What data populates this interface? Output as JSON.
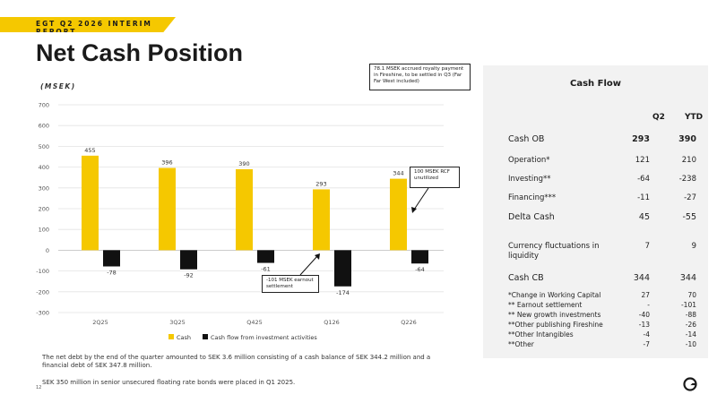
{
  "header": {
    "banner": "EGT Q2 2026 INTERIM REPORT",
    "title": "Net Cash Position",
    "unit": "(MSEK)"
  },
  "chart_data": {
    "type": "bar",
    "categories": [
      "2Q25",
      "3Q25",
      "Q425",
      "Q126",
      "Q226"
    ],
    "series": [
      {
        "name": "Cash",
        "values": [
          455,
          396,
          390,
          293,
          344
        ],
        "color": "#f5c800",
        "labels": [
          "455",
          "396",
          "390",
          "293",
          "344"
        ]
      },
      {
        "name": "Cash flow from investment activities",
        "values": [
          -78,
          -92,
          -61,
          -174,
          -64
        ],
        "color": "#111111",
        "labels": [
          "-78",
          "-92",
          "-61",
          "-174",
          "-64"
        ]
      }
    ],
    "ylim": [
      -300,
      700
    ],
    "yticks": [
      "-300",
      "-200",
      "-100",
      "0",
      "100",
      "200",
      "300",
      "400",
      "500",
      "600",
      "700"
    ],
    "grid": true,
    "legend": "bottom"
  },
  "callouts": {
    "royalty": "78.1 MSEK accrued royalty payment in Fireshine, to be settled in Q3 (Far Far West included)",
    "rcf": "100 MSEK RCF unutilized",
    "earnout": "-101 MSEK earnout settlement"
  },
  "notes": {
    "net_debt": "The net debt by the end of the quarter amounted to SEK 3.6 million consisting of a cash balance of SEK 344.2 million and a financial debt of SEK 347.8 million.",
    "bonds": "SEK 350 million in senior unsecured floating rate bonds were placed in Q1 2025."
  },
  "page_number": "12",
  "cashflow": {
    "title": "Cash Flow",
    "col_q2": "Q2",
    "col_ytd": "YTD",
    "rows": [
      {
        "label": "Cash OB",
        "q2": "293",
        "ytd": "390"
      },
      {
        "label": "Operation*",
        "q2": "121",
        "ytd": "210"
      },
      {
        "label": "Investing**",
        "q2": "-64",
        "ytd": "-238"
      },
      {
        "label": "Financing***",
        "q2": "-11",
        "ytd": "-27"
      },
      {
        "label": "Delta Cash",
        "q2": "45",
        "ytd": "-55"
      },
      {
        "label": "Currency fluctuations in liquidity",
        "q2": "7",
        "ytd": "9"
      },
      {
        "label": "Cash CB",
        "q2": "344",
        "ytd": "344"
      }
    ],
    "footnotes": [
      {
        "label": "*Change in Working Capital",
        "q2": "27",
        "ytd": "70"
      },
      {
        "label": "** Earnout settlement",
        "q2": "-",
        "ytd": "-101"
      },
      {
        "label": "** New growth investments",
        "q2": "-40",
        "ytd": "-88"
      },
      {
        "label": "**Other publishing Fireshine",
        "q2": "-13",
        "ytd": "-26"
      },
      {
        "label": "**Other Intangibles",
        "q2": "-4",
        "ytd": "-14"
      },
      {
        "label": "**Other",
        "q2": "-7",
        "ytd": "-10"
      }
    ]
  },
  "logo_icon": "egt-logo-icon"
}
